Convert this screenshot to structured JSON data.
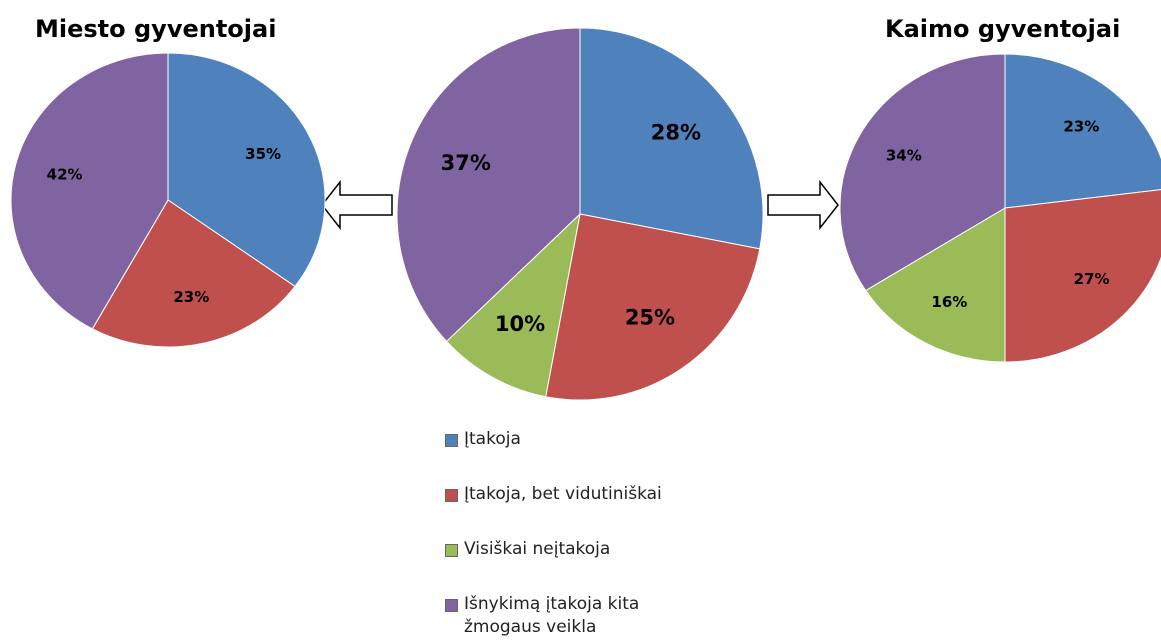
{
  "legend": {
    "items": [
      "Įtakoja",
      "Įtakoja, bet vidutiniškai",
      "Visiškai neįtakoja",
      "Išnykimą įtakoja kita žmogaus veikla"
    ],
    "colors": [
      "#4f81bd",
      "#c0504d",
      "#9bbb59",
      "#8064a2"
    ]
  },
  "chart_data": [
    {
      "type": "pie",
      "title": "Miesto gyventojai",
      "values": [
        35,
        23,
        0,
        42
      ],
      "value_labels": [
        "35%",
        "23%",
        null,
        "42%"
      ]
    },
    {
      "type": "pie",
      "values": [
        28,
        25,
        10,
        37
      ],
      "value_labels": [
        "28%",
        "25%",
        "10%",
        "37%"
      ]
    },
    {
      "type": "pie",
      "title": "Kaimo gyventojai",
      "values": [
        23,
        27,
        16,
        34
      ],
      "value_labels": [
        "23%",
        "27%",
        "16%",
        "34%"
      ]
    }
  ]
}
